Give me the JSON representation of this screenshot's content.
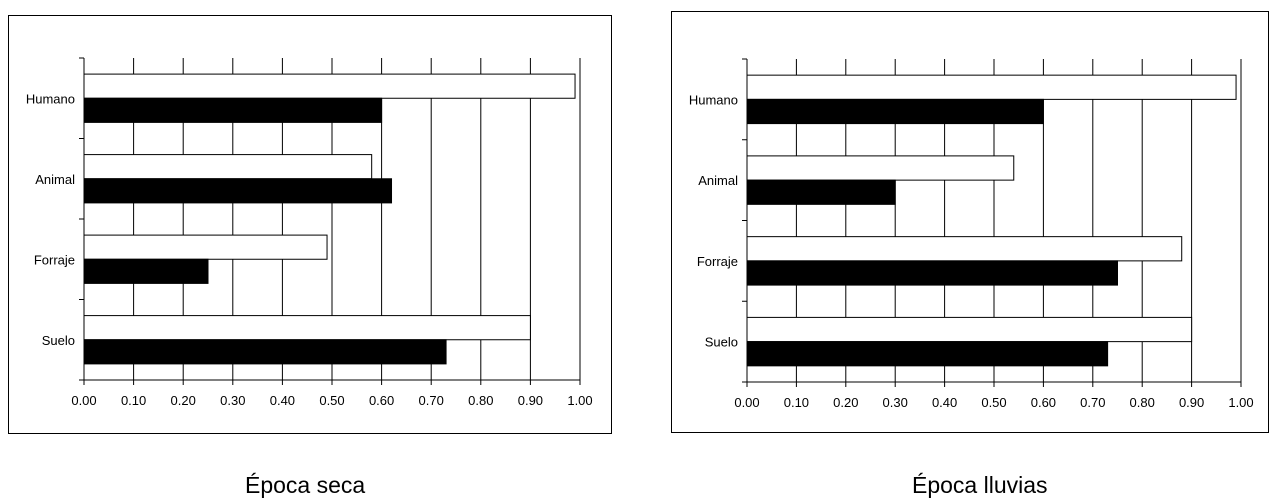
{
  "chart_data": [
    {
      "type": "bar",
      "orientation": "horizontal",
      "caption": "Época seca",
      "categories": [
        "Humano",
        "Animal",
        "Forraje",
        "Suelo"
      ],
      "series": [
        {
          "fill": "#ffffff",
          "values": [
            0.99,
            0.58,
            0.49,
            0.9
          ]
        },
        {
          "fill": "#000000",
          "values": [
            0.6,
            0.62,
            0.25,
            0.73
          ]
        }
      ],
      "x_ticks": [
        "0.00",
        "0.10",
        "0.20",
        "0.30",
        "0.40",
        "0.50",
        "0.60",
        "0.70",
        "0.80",
        "0.90",
        "1.00"
      ],
      "xlim": [
        0,
        1
      ],
      "grid": "vertical"
    },
    {
      "type": "bar",
      "orientation": "horizontal",
      "caption": "Época lluvias",
      "categories": [
        "Humano",
        "Animal",
        "Forraje",
        "Suelo"
      ],
      "series": [
        {
          "fill": "#ffffff",
          "values": [
            0.99,
            0.54,
            0.88,
            0.9
          ]
        },
        {
          "fill": "#000000",
          "values": [
            0.6,
            0.3,
            0.75,
            0.73
          ]
        }
      ],
      "x_ticks": [
        "0.00",
        "0.10",
        "0.20",
        "0.30",
        "0.40",
        "0.50",
        "0.60",
        "0.70",
        "0.80",
        "0.90",
        "1.00"
      ],
      "xlim": [
        0,
        1
      ],
      "grid": "vertical"
    }
  ]
}
